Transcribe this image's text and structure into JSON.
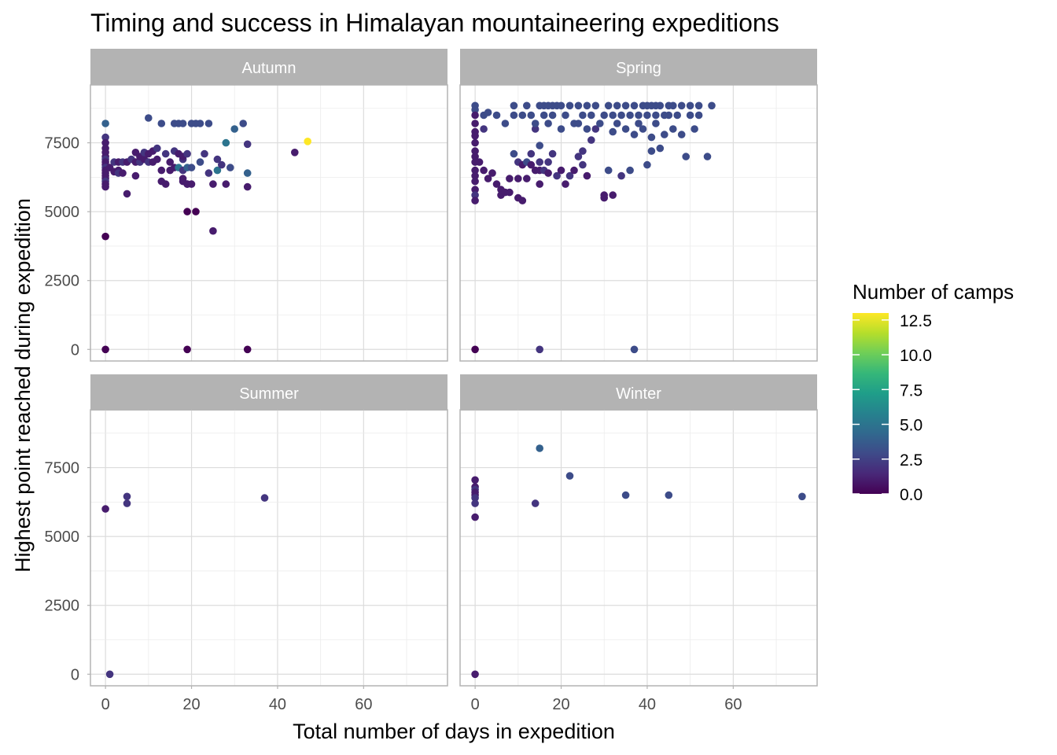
{
  "chart_data": {
    "type": "scatter",
    "title": "Timing and success in Himalayan mountaineering expeditions",
    "xlabel": "Total number of days in expedition",
    "ylabel": "Highest point reached during expedition",
    "xlim": [
      -3.5,
      79.5
    ],
    "ylim": [
      -420,
      9600
    ],
    "x_ticks": [
      0,
      20,
      40,
      60
    ],
    "y_ticks": [
      0,
      2500,
      5000,
      7500
    ],
    "grid": true,
    "legend": {
      "title": "Number of camps",
      "placement": "right",
      "type": "colorbar",
      "range": [
        0,
        13
      ],
      "ticks": [
        "0.0",
        "2.5",
        "5.0",
        "7.5",
        "10.0",
        "12.5"
      ],
      "colors": [
        "#440154",
        "#482878",
        "#3e4a89",
        "#31688e",
        "#26828e",
        "#1f9e89",
        "#35b779",
        "#6ece58",
        "#b5de2b",
        "#fde725"
      ]
    },
    "facets": [
      {
        "name": "Autumn",
        "points": [
          [
            0,
            8200,
            4
          ],
          [
            0,
            7700,
            2
          ],
          [
            0,
            7500,
            1
          ],
          [
            0,
            7300,
            1
          ],
          [
            0,
            7150,
            1
          ],
          [
            0,
            7000,
            1
          ],
          [
            0,
            6900,
            2
          ],
          [
            0,
            6800,
            1
          ],
          [
            0,
            6700,
            1
          ],
          [
            0,
            6600,
            2
          ],
          [
            0,
            6500,
            1
          ],
          [
            0,
            6400,
            1
          ],
          [
            0,
            6300,
            1
          ],
          [
            0,
            6200,
            1
          ],
          [
            0,
            6100,
            2
          ],
          [
            0,
            6000,
            1
          ],
          [
            0,
            5900,
            1
          ],
          [
            0,
            4100,
            0
          ],
          [
            0,
            0,
            0
          ],
          [
            1,
            6600,
            1
          ],
          [
            2,
            6450,
            1
          ],
          [
            2,
            6800,
            2
          ],
          [
            3,
            6500,
            1
          ],
          [
            3,
            6400,
            2
          ],
          [
            3,
            6800,
            1
          ],
          [
            4,
            6400,
            1
          ],
          [
            4,
            6800,
            2
          ],
          [
            5,
            5650,
            1
          ],
          [
            5,
            6800,
            1
          ],
          [
            6,
            6900,
            2
          ],
          [
            7,
            6300,
            1
          ],
          [
            7,
            6800,
            1
          ],
          [
            7,
            7150,
            1
          ],
          [
            8,
            6800,
            2
          ],
          [
            8,
            7000,
            1
          ],
          [
            9,
            6900,
            1
          ],
          [
            9,
            7150,
            2
          ],
          [
            10,
            7100,
            1
          ],
          [
            10,
            6800,
            2
          ],
          [
            10,
            8400,
            3
          ],
          [
            11,
            7200,
            1
          ],
          [
            11,
            6800,
            1
          ],
          [
            12,
            7300,
            2
          ],
          [
            12,
            6900,
            1
          ],
          [
            13,
            6100,
            1
          ],
          [
            13,
            8200,
            3
          ],
          [
            13,
            6500,
            1
          ],
          [
            14,
            6000,
            1
          ],
          [
            14,
            7100,
            2
          ],
          [
            15,
            6800,
            1
          ],
          [
            15,
            6500,
            1
          ],
          [
            16,
            7200,
            2
          ],
          [
            16,
            6600,
            1
          ],
          [
            16,
            8200,
            3
          ],
          [
            17,
            7100,
            1
          ],
          [
            17,
            8200,
            3
          ],
          [
            17,
            6600,
            5
          ],
          [
            18,
            6900,
            2
          ],
          [
            18,
            6200,
            1
          ],
          [
            18,
            7000,
            1
          ],
          [
            18,
            6500,
            2
          ],
          [
            18,
            6100,
            1
          ],
          [
            18,
            8200,
            3
          ],
          [
            19,
            6000,
            1
          ],
          [
            19,
            7100,
            2
          ],
          [
            19,
            6600,
            4
          ],
          [
            19,
            6000,
            1
          ],
          [
            19,
            5000,
            0
          ],
          [
            20,
            6600,
            3
          ],
          [
            20,
            8200,
            3
          ],
          [
            20,
            6000,
            1
          ],
          [
            21,
            8200,
            3
          ],
          [
            21,
            5000,
            0
          ],
          [
            22,
            6800,
            3
          ],
          [
            22,
            8200,
            3
          ],
          [
            23,
            7100,
            2
          ],
          [
            24,
            6400,
            2
          ],
          [
            24,
            8200,
            3
          ],
          [
            25,
            6000,
            1
          ],
          [
            25,
            4300,
            1
          ],
          [
            26,
            6500,
            5
          ],
          [
            26,
            6900,
            2
          ],
          [
            27,
            6700,
            2
          ],
          [
            28,
            7500,
            5
          ],
          [
            28,
            6000,
            1
          ],
          [
            29,
            6600,
            3
          ],
          [
            30,
            8000,
            4
          ],
          [
            32,
            8200,
            3
          ],
          [
            33,
            7450,
            2
          ],
          [
            33,
            6400,
            4
          ],
          [
            33,
            5900,
            1
          ],
          [
            44,
            7150,
            1
          ],
          [
            47,
            7550,
            13
          ],
          [
            19,
            0,
            0
          ],
          [
            33,
            0,
            0
          ]
        ]
      },
      {
        "name": "Spring",
        "points": [
          [
            0,
            8850,
            3
          ],
          [
            0,
            8700,
            3
          ],
          [
            0,
            8500,
            1
          ],
          [
            0,
            8200,
            1
          ],
          [
            0,
            7900,
            1
          ],
          [
            0,
            7750,
            1
          ],
          [
            0,
            7500,
            1
          ],
          [
            0,
            7200,
            1
          ],
          [
            0,
            7000,
            1
          ],
          [
            0,
            6800,
            1
          ],
          [
            0,
            6500,
            1
          ],
          [
            0,
            6300,
            1
          ],
          [
            0,
            6100,
            1
          ],
          [
            0,
            5800,
            1
          ],
          [
            0,
            5600,
            2
          ],
          [
            0,
            5400,
            1
          ],
          [
            0,
            0,
            0
          ],
          [
            1,
            6800,
            1
          ],
          [
            2,
            8000,
            2
          ],
          [
            2,
            8500,
            3
          ],
          [
            2,
            6500,
            1
          ],
          [
            3,
            8600,
            3
          ],
          [
            3,
            6200,
            1
          ],
          [
            4,
            6400,
            1
          ],
          [
            5,
            8500,
            3
          ],
          [
            5,
            6000,
            1
          ],
          [
            6,
            5800,
            1
          ],
          [
            6,
            5600,
            1
          ],
          [
            7,
            5700,
            1
          ],
          [
            7,
            8200,
            3
          ],
          [
            8,
            6200,
            1
          ],
          [
            8,
            5700,
            1
          ],
          [
            9,
            8850,
            3
          ],
          [
            9,
            8500,
            3
          ],
          [
            9,
            7100,
            3
          ],
          [
            10,
            5500,
            1
          ],
          [
            10,
            6800,
            2
          ],
          [
            10,
            6200,
            1
          ],
          [
            11,
            8500,
            3
          ],
          [
            11,
            5400,
            1
          ],
          [
            11,
            6700,
            1
          ],
          [
            12,
            8850,
            3
          ],
          [
            12,
            6800,
            3
          ],
          [
            12,
            6200,
            1
          ],
          [
            13,
            8500,
            3
          ],
          [
            13,
            7100,
            2
          ],
          [
            13,
            6700,
            1
          ],
          [
            14,
            8000,
            2
          ],
          [
            14,
            8200,
            3
          ],
          [
            14,
            6500,
            1
          ],
          [
            15,
            8850,
            3
          ],
          [
            15,
            7400,
            3
          ],
          [
            15,
            6800,
            2
          ],
          [
            15,
            6000,
            1
          ],
          [
            15,
            6500,
            1
          ],
          [
            16,
            8500,
            3
          ],
          [
            16,
            8850,
            3
          ],
          [
            16,
            6500,
            2
          ],
          [
            17,
            8850,
            3
          ],
          [
            17,
            8200,
            3
          ],
          [
            17,
            6800,
            2
          ],
          [
            17,
            6400,
            1
          ],
          [
            18,
            8850,
            3
          ],
          [
            18,
            8500,
            3
          ],
          [
            18,
            7100,
            2
          ],
          [
            19,
            8850,
            3
          ],
          [
            19,
            6300,
            2
          ],
          [
            20,
            8850,
            3
          ],
          [
            20,
            8000,
            3
          ],
          [
            20,
            6500,
            1
          ],
          [
            21,
            8500,
            3
          ],
          [
            21,
            6000,
            1
          ],
          [
            22,
            8850,
            3
          ],
          [
            22,
            6300,
            2
          ],
          [
            23,
            8200,
            3
          ],
          [
            23,
            6500,
            1
          ],
          [
            24,
            8850,
            3
          ],
          [
            24,
            8200,
            3
          ],
          [
            24,
            7000,
            2
          ],
          [
            25,
            8500,
            3
          ],
          [
            25,
            7200,
            2
          ],
          [
            25,
            6700,
            2
          ],
          [
            26,
            8850,
            3
          ],
          [
            26,
            8000,
            3
          ],
          [
            26,
            6300,
            1
          ],
          [
            27,
            8500,
            3
          ],
          [
            27,
            7600,
            2
          ],
          [
            28,
            8850,
            3
          ],
          [
            28,
            8000,
            2
          ],
          [
            29,
            8200,
            3
          ],
          [
            30,
            8500,
            3
          ],
          [
            30,
            5500,
            1
          ],
          [
            30,
            5600,
            1
          ],
          [
            31,
            8850,
            3
          ],
          [
            31,
            6500,
            3
          ],
          [
            32,
            8500,
            3
          ],
          [
            32,
            7900,
            3
          ],
          [
            32,
            5600,
            1
          ],
          [
            33,
            8850,
            3
          ],
          [
            33,
            8200,
            3
          ],
          [
            34,
            8500,
            3
          ],
          [
            34,
            6300,
            2
          ],
          [
            35,
            8850,
            3
          ],
          [
            35,
            8000,
            3
          ],
          [
            36,
            8500,
            3
          ],
          [
            36,
            6500,
            3
          ],
          [
            37,
            8850,
            3
          ],
          [
            37,
            7800,
            3
          ],
          [
            38,
            8500,
            3
          ],
          [
            38,
            8200,
            3
          ],
          [
            39,
            8850,
            3
          ],
          [
            39,
            8000,
            3
          ],
          [
            40,
            8500,
            3
          ],
          [
            40,
            8850,
            3
          ],
          [
            40,
            6700,
            3
          ],
          [
            41,
            8850,
            3
          ],
          [
            41,
            7200,
            3
          ],
          [
            41,
            7700,
            3
          ],
          [
            42,
            8850,
            3
          ],
          [
            42,
            8500,
            3
          ],
          [
            42,
            8200,
            3
          ],
          [
            43,
            8850,
            3
          ],
          [
            43,
            7300,
            3
          ],
          [
            44,
            8500,
            3
          ],
          [
            44,
            7800,
            3
          ],
          [
            45,
            8850,
            3
          ],
          [
            45,
            8500,
            3
          ],
          [
            46,
            8850,
            3
          ],
          [
            46,
            8000,
            3
          ],
          [
            47,
            8500,
            3
          ],
          [
            48,
            8850,
            3
          ],
          [
            48,
            7800,
            3
          ],
          [
            49,
            7000,
            3
          ],
          [
            50,
            8850,
            3
          ],
          [
            50,
            8500,
            3
          ],
          [
            51,
            8000,
            3
          ],
          [
            52,
            8850,
            3
          ],
          [
            52,
            8500,
            3
          ],
          [
            54,
            7000,
            3
          ],
          [
            55,
            8850,
            3
          ],
          [
            15,
            0,
            2
          ],
          [
            37,
            0,
            3
          ]
        ]
      },
      {
        "name": "Summer",
        "points": [
          [
            0,
            6000,
            1
          ],
          [
            1,
            0,
            2
          ],
          [
            5,
            6450,
            2
          ],
          [
            5,
            6200,
            2
          ],
          [
            37,
            6400,
            2
          ]
        ]
      },
      {
        "name": "Winter",
        "points": [
          [
            0,
            7050,
            1
          ],
          [
            0,
            6800,
            1
          ],
          [
            0,
            6700,
            2
          ],
          [
            0,
            6600,
            1
          ],
          [
            0,
            6500,
            1
          ],
          [
            0,
            6400,
            2
          ],
          [
            0,
            6200,
            2
          ],
          [
            0,
            5700,
            1
          ],
          [
            0,
            0,
            1
          ],
          [
            14,
            6200,
            2
          ],
          [
            15,
            8200,
            4
          ],
          [
            22,
            7200,
            3
          ],
          [
            35,
            6500,
            3
          ],
          [
            45,
            6500,
            3
          ],
          [
            76,
            6450,
            3
          ]
        ]
      }
    ]
  }
}
